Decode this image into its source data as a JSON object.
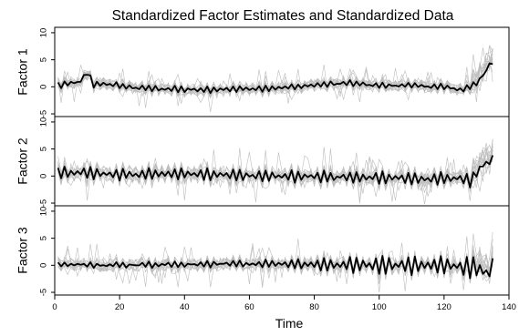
{
  "chart_data": {
    "type": "line",
    "title": "Standardized Factor Estimates and Standardized Data",
    "xlabel": "Time",
    "xlim": [
      0,
      140
    ],
    "x_ticks": [
      0,
      20,
      40,
      60,
      80,
      100,
      120,
      140
    ],
    "y_ticks": [
      -5,
      0,
      5,
      10
    ],
    "colors": {
      "factor": "#000000",
      "data": "#bdbdbd"
    },
    "panels": [
      {
        "label": "Factor 1",
        "ylim": [
          -5.5,
          11
        ],
        "factor_keyframes": [
          [
            1,
            0.3
          ],
          [
            4,
            0.5
          ],
          [
            8,
            1.0
          ],
          [
            10,
            2.6
          ],
          [
            12,
            0.4
          ],
          [
            15,
            0.6
          ],
          [
            25,
            -0.2
          ],
          [
            45,
            -0.6
          ],
          [
            55,
            -0.4
          ],
          [
            70,
            -0.2
          ],
          [
            80,
            0.3
          ],
          [
            90,
            0.7
          ],
          [
            100,
            0.2
          ],
          [
            110,
            0.3
          ],
          [
            120,
            -0.1
          ],
          [
            126,
            -0.5
          ],
          [
            130,
            0.6
          ],
          [
            133,
            2.8
          ],
          [
            134,
            4.7
          ],
          [
            135,
            3.8
          ]
        ],
        "factor_oscillation": 0.55,
        "data_series_count": 16,
        "data_spread": 1.0
      },
      {
        "label": "Factor 2",
        "ylim": [
          -5.5,
          11
        ],
        "factor_keyframes": [
          [
            1,
            0.6
          ],
          [
            10,
            0.6
          ],
          [
            20,
            0.3
          ],
          [
            40,
            0.4
          ],
          [
            60,
            0.1
          ],
          [
            80,
            -0.1
          ],
          [
            100,
            -0.3
          ],
          [
            115,
            -0.5
          ],
          [
            125,
            -0.4
          ],
          [
            128,
            -0.9
          ],
          [
            132,
            2.0
          ],
          [
            135,
            3.0
          ]
        ],
        "factor_oscillation": 1.1,
        "data_series_count": 16,
        "data_spread": 1.3
      },
      {
        "label": "Factor 3",
        "ylim": [
          -5.5,
          11
        ],
        "factor_keyframes": [
          [
            1,
            0.2
          ],
          [
            20,
            0.0
          ],
          [
            40,
            0.2
          ],
          [
            60,
            0.3
          ],
          [
            80,
            0.2
          ],
          [
            100,
            0.0
          ],
          [
            120,
            0.0
          ],
          [
            130,
            -0.5
          ],
          [
            133,
            -1.5
          ],
          [
            135,
            -0.5
          ]
        ],
        "factor_oscillation": 0.6,
        "factor_oscillation_growth": [
          [
            1,
            0.4
          ],
          [
            60,
            0.6
          ],
          [
            85,
            1.2
          ],
          [
            100,
            1.9
          ],
          [
            120,
            1.6
          ],
          [
            133,
            2.4
          ]
        ],
        "data_series_count": 16,
        "data_spread": 1.1
      }
    ]
  }
}
